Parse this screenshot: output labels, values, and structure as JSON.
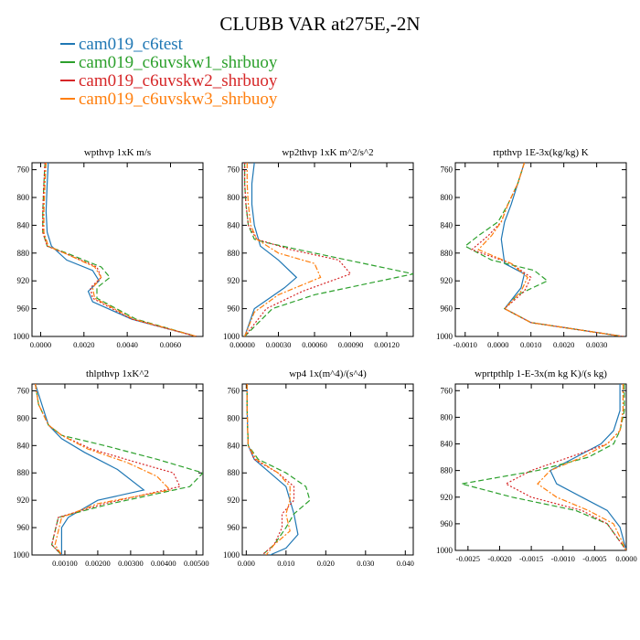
{
  "figure": {
    "title": "CLUBB VAR at275E,-2N"
  },
  "legend": [
    {
      "name": "cam019_c6test",
      "color": "#1f77b4",
      "dash": "solid"
    },
    {
      "name": "cam019_c6uvskw1_shrbuoy",
      "color": "#2ca02c",
      "dash": "dashed"
    },
    {
      "name": "cam019_c6uvskw2_shrbuoy",
      "color": "#d62728",
      "dash": "dotted"
    },
    {
      "name": "cam019_c6uvskw3_shrbuoy",
      "color": "#ff7f0e",
      "dash": "dashdot"
    }
  ],
  "chart_data": [
    {
      "type": "line",
      "title": "wpthvp   1xK m/s",
      "xlim": [
        -0.0004,
        0.0075
      ],
      "ylim": [
        1000,
        750
      ],
      "xticks": [
        0.0,
        0.002,
        0.004,
        0.006
      ],
      "xtick_labels": [
        "0.0000",
        "0.0020",
        "0.0040",
        "0.0060"
      ],
      "yticks": [
        760,
        800,
        840,
        880,
        920,
        960,
        1000
      ],
      "grid": false,
      "series": [
        {
          "name": "cam019_c6test",
          "x": [
            0.00035,
            0.0003,
            0.00025,
            0.0003,
            0.0005,
            0.0012,
            0.0024,
            0.0027,
            0.0022,
            0.0024,
            0.0042,
            0.0072
          ],
          "y": [
            750,
            780,
            820,
            850,
            870,
            890,
            905,
            920,
            935,
            950,
            975,
            1000
          ]
        },
        {
          "name": "cam019_c6uvskw1_shrbuoy",
          "x": [
            0.0002,
            0.00015,
            0.0001,
            0.0001,
            0.0003,
            0.0012,
            0.0028,
            0.0032,
            0.0026,
            0.0026,
            0.0044,
            0.0072
          ],
          "y": [
            750,
            780,
            820,
            850,
            870,
            880,
            900,
            915,
            930,
            945,
            975,
            1000
          ]
        },
        {
          "name": "cam019_c6uvskw2_shrbuoy",
          "x": [
            0.0002,
            0.00015,
            0.0001,
            0.0001,
            0.0003,
            0.0011,
            0.0026,
            0.0028,
            0.0023,
            0.0024,
            0.0042,
            0.0072
          ],
          "y": [
            750,
            780,
            820,
            850,
            870,
            880,
            900,
            915,
            930,
            945,
            975,
            1000
          ]
        },
        {
          "name": "cam019_c6uvskw3_shrbuoy",
          "x": [
            0.00025,
            0.0002,
            0.00015,
            0.00015,
            0.00035,
            0.0011,
            0.0025,
            0.0028,
            0.0024,
            0.0025,
            0.0043,
            0.0072
          ],
          "y": [
            750,
            780,
            820,
            850,
            870,
            880,
            900,
            915,
            930,
            945,
            975,
            1000
          ]
        }
      ]
    },
    {
      "type": "line",
      "title": "wp2thvp   1xK m^2/s^2",
      "xlim": [
        0.0,
        0.00142
      ],
      "ylim": [
        1000,
        750
      ],
      "xticks": [
        0.0,
        0.0003,
        0.0006,
        0.0009,
        0.0012
      ],
      "xtick_labels": [
        "0.00000",
        "0.00030",
        "0.00060",
        "0.00090",
        "0.00120"
      ],
      "yticks": [
        760,
        800,
        840,
        880,
        920,
        960,
        1000
      ],
      "grid": false,
      "series": [
        {
          "name": "cam019_c6test",
          "x": [
            0.0001,
            8e-05,
            8e-05,
            0.0001,
            0.00015,
            0.0003,
            0.00045,
            0.00035,
            0.0001,
            2e-05
          ],
          "y": [
            750,
            780,
            810,
            840,
            870,
            890,
            915,
            930,
            960,
            1000
          ]
        },
        {
          "name": "cam019_c6uvskw1_shrbuoy",
          "x": [
            2e-05,
            2e-05,
            3e-05,
            5e-05,
            0.0001,
            0.0002,
            0.0006,
            0.00142,
            0.0006,
            0.00025,
            2e-05
          ],
          "y": [
            750,
            780,
            810,
            840,
            860,
            865,
            880,
            910,
            940,
            960,
            1000
          ]
        },
        {
          "name": "cam019_c6uvskw2_shrbuoy",
          "x": [
            2e-05,
            2e-05,
            3e-05,
            5e-05,
            0.00012,
            0.0004,
            0.0008,
            0.0009,
            0.0005,
            0.0002,
            2e-05
          ],
          "y": [
            750,
            780,
            810,
            840,
            860,
            875,
            890,
            910,
            935,
            960,
            1000
          ]
        },
        {
          "name": "cam019_c6uvskw3_shrbuoy",
          "x": [
            4e-05,
            4e-05,
            5e-05,
            7e-05,
            0.00012,
            0.0003,
            0.0006,
            0.00065,
            0.0003,
            0.0001,
            2e-05
          ],
          "y": [
            750,
            780,
            810,
            840,
            860,
            880,
            895,
            915,
            940,
            965,
            1000
          ]
        }
      ]
    },
    {
      "type": "line",
      "title": "rtpthvp   1E-3x(kg/kg) K",
      "xlim": [
        -0.0013,
        0.0039
      ],
      "ylim": [
        1000,
        750
      ],
      "xticks": [
        -0.001,
        0.0,
        0.001,
        0.002,
        0.003
      ],
      "xtick_labels": [
        "-0.0010",
        "0.0000",
        "0.0010",
        "0.0020",
        "0.0030"
      ],
      "yticks": [
        760,
        800,
        840,
        880,
        920,
        960,
        1000
      ],
      "grid": false,
      "series": [
        {
          "name": "cam019_c6test",
          "x": [
            0.0008,
            0.0006,
            0.0004,
            0.0002,
            0.0001,
            0.0002,
            0.0008,
            0.0007,
            0.0002,
            0.001,
            0.0038
          ],
          "y": [
            750,
            780,
            810,
            835,
            860,
            895,
            910,
            930,
            960,
            980,
            1000
          ]
        },
        {
          "name": "cam019_c6uvskw1_shrbuoy",
          "x": [
            0.0008,
            0.0006,
            0.0003,
            0.0,
            -0.0006,
            -0.001,
            -0.0002,
            0.0011,
            0.0015,
            0.0006,
            0.0002,
            0.001,
            0.0038
          ],
          "y": [
            750,
            780,
            810,
            835,
            855,
            870,
            890,
            905,
            920,
            940,
            960,
            980,
            1000
          ]
        },
        {
          "name": "cam019_c6uvskw2_shrbuoy",
          "x": [
            0.0008,
            0.0006,
            0.0003,
            0.0001,
            -0.0003,
            -0.0008,
            0.0004,
            0.001,
            0.0008,
            0.0002,
            0.001,
            0.0038
          ],
          "y": [
            750,
            780,
            810,
            835,
            855,
            875,
            895,
            915,
            935,
            960,
            980,
            1000
          ]
        },
        {
          "name": "cam019_c6uvskw3_shrbuoy",
          "x": [
            0.0008,
            0.0006,
            0.0003,
            0.0001,
            -0.0002,
            -0.0006,
            0.0004,
            0.0009,
            0.0007,
            0.0002,
            0.001,
            0.0038
          ],
          "y": [
            750,
            780,
            810,
            835,
            855,
            875,
            895,
            915,
            935,
            960,
            980,
            1000
          ]
        }
      ]
    },
    {
      "type": "line",
      "title": "thlpthvp   1xK^2",
      "xlim": [
        0.0,
        0.0052
      ],
      "ylim": [
        1000,
        750
      ],
      "xticks": [
        0.001,
        0.002,
        0.003,
        0.004,
        0.005
      ],
      "xtick_labels": [
        "0.00100",
        "0.00200",
        "0.00300",
        "0.00400",
        "0.00500"
      ],
      "yticks": [
        760,
        800,
        840,
        880,
        920,
        960,
        1000
      ],
      "grid": false,
      "series": [
        {
          "name": "cam019_c6test",
          "x": [
            0.0001,
            0.0003,
            0.0005,
            0.0009,
            0.0016,
            0.0026,
            0.0034,
            0.002,
            0.0011,
            0.0009,
            0.0009,
            0.0009
          ],
          "y": [
            750,
            780,
            810,
            830,
            850,
            875,
            905,
            920,
            945,
            960,
            980,
            1000
          ]
        },
        {
          "name": "cam019_c6uvskw1_shrbuoy",
          "x": [
            0.0001,
            0.0002,
            0.0005,
            0.0009,
            0.0022,
            0.0038,
            0.0052,
            0.0048,
            0.0024,
            0.0008,
            0.0007,
            0.0006,
            0.0009
          ],
          "y": [
            750,
            780,
            810,
            825,
            840,
            860,
            880,
            900,
            925,
            945,
            965,
            985,
            1000
          ]
        },
        {
          "name": "cam019_c6uvskw2_shrbuoy",
          "x": [
            0.0001,
            0.0002,
            0.0005,
            0.0009,
            0.0018,
            0.0032,
            0.0043,
            0.0045,
            0.0022,
            0.0008,
            0.0007,
            0.0006,
            0.0009
          ],
          "y": [
            750,
            780,
            810,
            825,
            845,
            865,
            880,
            900,
            925,
            945,
            965,
            985,
            1000
          ]
        },
        {
          "name": "cam019_c6uvskw3_shrbuoy",
          "x": [
            0.0001,
            0.0002,
            0.0005,
            0.0009,
            0.0017,
            0.0029,
            0.0038,
            0.0042,
            0.002,
            0.0009,
            0.0008,
            0.0007,
            0.0009
          ],
          "y": [
            750,
            780,
            810,
            825,
            845,
            865,
            885,
            905,
            925,
            945,
            965,
            985,
            1000
          ]
        }
      ]
    },
    {
      "type": "line",
      "title": "wp4   1x(m^4)/(s^4)",
      "xlim": [
        -0.001,
        0.042
      ],
      "ylim": [
        1000,
        750
      ],
      "xticks": [
        0.0,
        0.01,
        0.02,
        0.03,
        0.04
      ],
      "xtick_labels": [
        "0.000",
        "0.010",
        "0.020",
        "0.030",
        "0.040"
      ],
      "yticks": [
        760,
        800,
        840,
        880,
        920,
        960,
        1000
      ],
      "grid": false,
      "series": [
        {
          "name": "cam019_c6test",
          "x": [
            0.0002,
            0.0002,
            0.0003,
            0.0005,
            0.002,
            0.006,
            0.01,
            0.011,
            0.012,
            0.013,
            0.01,
            0.006
          ],
          "y": [
            750,
            780,
            810,
            840,
            860,
            880,
            900,
            920,
            940,
            970,
            990,
            1000
          ]
        },
        {
          "name": "cam019_c6uvskw1_shrbuoy",
          "x": [
            0.0002,
            0.0002,
            0.0003,
            0.0005,
            0.003,
            0.01,
            0.015,
            0.016,
            0.012,
            0.01,
            0.007,
            0.004
          ],
          "y": [
            750,
            780,
            810,
            840,
            860,
            880,
            900,
            920,
            940,
            960,
            985,
            1000
          ]
        },
        {
          "name": "cam019_c6uvskw2_shrbuoy",
          "x": [
            0.0002,
            0.0002,
            0.0003,
            0.0005,
            0.002,
            0.008,
            0.012,
            0.012,
            0.009,
            0.009,
            0.007,
            0.004
          ],
          "y": [
            750,
            780,
            810,
            840,
            860,
            880,
            900,
            920,
            940,
            960,
            985,
            1000
          ]
        },
        {
          "name": "cam019_c6uvskw3_shrbuoy",
          "x": [
            0.0002,
            0.0002,
            0.0003,
            0.0005,
            0.0025,
            0.008,
            0.011,
            0.011,
            0.01,
            0.011,
            0.007,
            0.005
          ],
          "y": [
            750,
            780,
            810,
            840,
            860,
            880,
            900,
            920,
            940,
            965,
            985,
            1000
          ]
        }
      ]
    },
    {
      "type": "line",
      "title": "wprtpthlp   1-E-3x(m kg K)/(s kg)",
      "xlim": [
        -0.0027,
        0.0
      ],
      "ylim": [
        1000,
        750
      ],
      "xticks": [
        -0.0025,
        -0.002,
        -0.0015,
        -0.001,
        -0.0005,
        0.0
      ],
      "xtick_labels": [
        "-0.0025",
        "-0.0020",
        "-0.0015",
        "-0.0010",
        "-0.0005",
        "0.0000"
      ],
      "yticks": [
        760,
        800,
        840,
        880,
        920,
        960,
        1000
      ],
      "grid": false,
      "series": [
        {
          "name": "cam019_c6test",
          "x": [
            -0.0001,
            -0.0001,
            -0.0002,
            -0.0004,
            -0.0008,
            -0.0012,
            -0.0011,
            -0.0007,
            -0.0003,
            -0.0001,
            0.0
          ],
          "y": [
            750,
            790,
            820,
            840,
            860,
            880,
            900,
            920,
            940,
            965,
            1000
          ]
        },
        {
          "name": "cam019_c6uvskw1_shrbuoy",
          "x": [
            -3e-05,
            -3e-05,
            -0.0001,
            -0.0002,
            -0.0006,
            -0.0014,
            -0.0026,
            -0.0018,
            -0.0008,
            -0.0003,
            0.0
          ],
          "y": [
            750,
            790,
            820,
            840,
            860,
            880,
            900,
            920,
            940,
            960,
            1000
          ]
        },
        {
          "name": "cam019_c6uvskw2_shrbuoy",
          "x": [
            -5e-05,
            -5e-05,
            -0.0001,
            -0.0003,
            -0.0009,
            -0.0015,
            -0.0019,
            -0.0015,
            -0.0007,
            -0.0003,
            0.0
          ],
          "y": [
            750,
            790,
            820,
            840,
            860,
            880,
            900,
            920,
            940,
            960,
            1000
          ]
        },
        {
          "name": "cam019_c6uvskw3_shrbuoy",
          "x": [
            -5e-05,
            -5e-05,
            -0.0001,
            -0.0003,
            -0.0007,
            -0.0012,
            -0.0014,
            -0.0011,
            -0.0006,
            -0.0002,
            0.0
          ],
          "y": [
            750,
            790,
            820,
            840,
            860,
            880,
            900,
            920,
            940,
            960,
            1000
          ]
        }
      ]
    }
  ]
}
